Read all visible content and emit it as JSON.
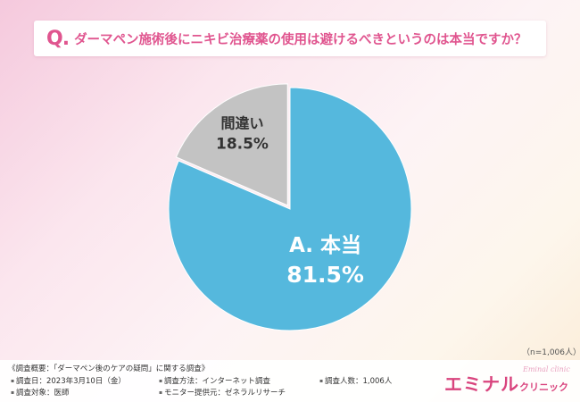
{
  "header": {
    "q_mark": "Q.",
    "question": "ダーマペン施術後にニキビ治療薬の使用は避けるべきというのは本当ですか？"
  },
  "chart_data": {
    "type": "pie",
    "title": "ダーマペン施術後にニキビ治療薬の使用は避けるべきというのは本当ですか？",
    "slices": [
      {
        "label": "A. 本当",
        "value": 81.5,
        "value_label": "81.5%",
        "color": "#55b8dd"
      },
      {
        "label": "間違い",
        "value": 18.5,
        "value_label": "18.5%",
        "color": "#c3c3c3"
      }
    ]
  },
  "sample_note": "（n=1,006人）",
  "footer": {
    "title": "《調査概要：「ダーマペン後のケアの疑問」に関する調査》",
    "items": [
      "調査日：2023年3月10日（金）",
      "調査方法：インターネット調査",
      "調査人数：1,006人",
      "調査対象：医師",
      "モニター提供元：ゼネラルリサーチ"
    ]
  },
  "logo": {
    "main": "エミナル",
    "sub": "クリニック",
    "script": "Eminal clinic"
  }
}
